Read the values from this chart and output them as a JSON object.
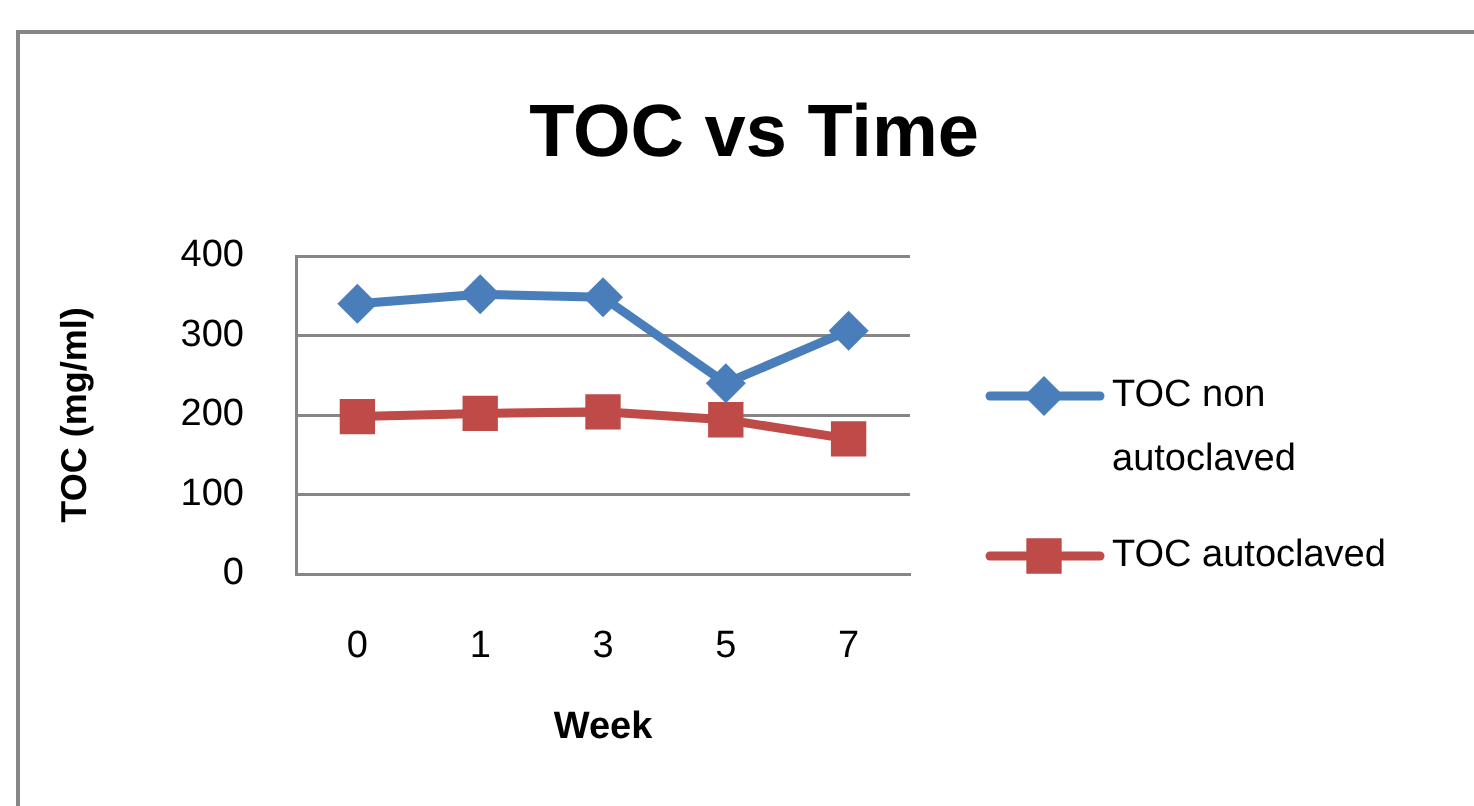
{
  "chart_data": {
    "type": "line",
    "title": "TOC vs Time",
    "xlabel": "Week",
    "ylabel": "TOC (mg/ml)",
    "categories": [
      "0",
      "1",
      "3",
      "5",
      "7"
    ],
    "series": [
      {
        "name": "TOC non autoclaved",
        "color": "#4a7ebb",
        "marker": "diamond",
        "values": [
          340,
          352,
          348,
          240,
          306
        ]
      },
      {
        "name": "TOC autoclaved",
        "color": "#be4b48",
        "marker": "square",
        "values": [
          198,
          202,
          204,
          194,
          170
        ]
      }
    ],
    "ylim": [
      0,
      400
    ],
    "yticks": [
      0,
      100,
      200,
      300,
      400
    ],
    "grid": "y",
    "legend": "right",
    "line_style": "solid"
  }
}
